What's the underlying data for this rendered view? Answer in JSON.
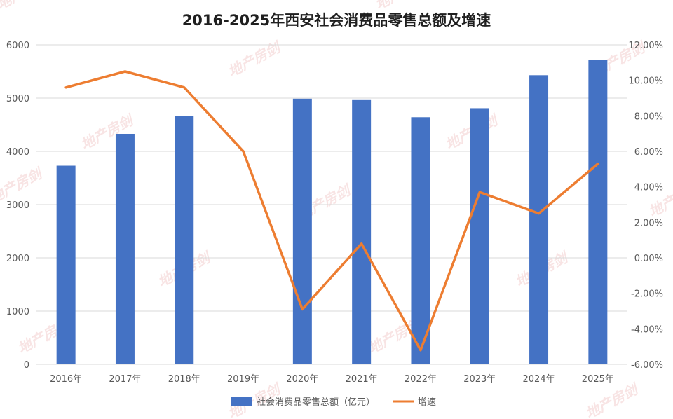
{
  "chart_data": {
    "type": "bar",
    "title": "2016-2025年西安社会消费品零售总额及增速",
    "categories": [
      "2016年",
      "2017年",
      "2018年",
      "2019年",
      "2020年",
      "2021年",
      "2022年",
      "2023年",
      "2024年",
      "2025年"
    ],
    "series": [
      {
        "name": "社会消费品零售总额（亿元）",
        "type": "bar",
        "axis": "left",
        "color": "#4472c4",
        "values": [
          3730,
          4329,
          4659,
          null,
          4989,
          4963,
          4641,
          4810,
          5430,
          5720
        ]
      },
      {
        "name": "增速",
        "type": "line",
        "axis": "right",
        "color": "#ed7d31",
        "values": [
          9.6,
          10.5,
          9.6,
          6.0,
          -2.9,
          0.8,
          -5.2,
          3.7,
          2.5,
          5.3
        ]
      }
    ],
    "left_axis": {
      "min": 0,
      "max": 6000,
      "step": 1000,
      "ticks": [
        "0",
        "1000",
        "2000",
        "3000",
        "4000",
        "5000",
        "6000"
      ]
    },
    "right_axis": {
      "min": -6,
      "max": 12,
      "step": 2,
      "ticks": [
        "-6.00%",
        "-4.00%",
        "-2.00%",
        "0.00%",
        "2.00%",
        "4.00%",
        "6.00%",
        "8.00%",
        "10.00%",
        "12.00%"
      ]
    },
    "grid": true,
    "legend_position": "bottom"
  },
  "watermark": {
    "text": "地产房剑",
    "color": "#d9534f"
  }
}
